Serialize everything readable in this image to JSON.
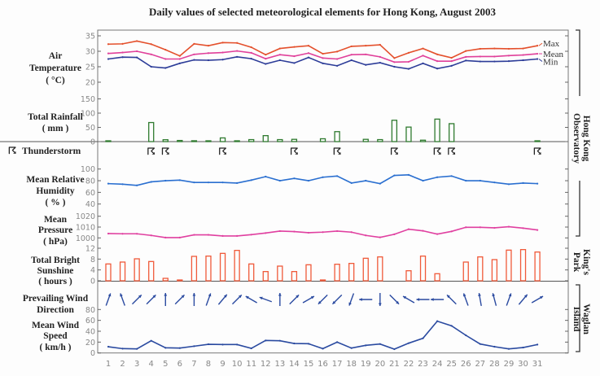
{
  "chart_data": {
    "type": "line",
    "title": "Daily values of selected meteorological elements for Hong Kong, August 2003",
    "x": [
      1,
      2,
      3,
      4,
      5,
      6,
      7,
      8,
      9,
      10,
      11,
      12,
      13,
      14,
      15,
      16,
      17,
      18,
      19,
      20,
      21,
      22,
      23,
      24,
      25,
      26,
      27,
      28,
      29,
      30,
      31
    ],
    "stations": [
      "Hong Kong Observatory",
      "King's Park",
      "Waglan Island"
    ],
    "panels": [
      {
        "id": "temperature",
        "label": [
          "Air",
          "Temperature",
          "( °C)"
        ],
        "type": "line",
        "ylim": [
          20,
          35
        ],
        "ticks": [
          35,
          30,
          25,
          20
        ],
        "series": [
          {
            "name": "Max",
            "color": "#e4502c",
            "values": [
              32.3,
              32.4,
              33.3,
              32.3,
              30.5,
              28.5,
              32.4,
              31.8,
              32.8,
              32.7,
              31.3,
              28.9,
              30.9,
              31.4,
              31.8,
              29.2,
              29.9,
              31.6,
              31.8,
              32.1,
              27.8,
              29.5,
              30.9,
              29.0,
              27.9,
              30.1,
              30.8,
              30.9,
              30.8,
              30.9,
              31.8
            ]
          },
          {
            "name": "Mean",
            "color": "#e0409a",
            "values": [
              29.3,
              29.6,
              30.0,
              29.0,
              27.5,
              27.5,
              29.0,
              29.4,
              29.6,
              30.1,
              29.5,
              27.6,
              28.9,
              28.4,
              29.4,
              27.8,
              27.5,
              28.9,
              29.0,
              28.2,
              26.5,
              26.6,
              28.6,
              26.8,
              26.8,
              28.2,
              28.3,
              28.3,
              28.6,
              28.8,
              29.2
            ]
          },
          {
            "name": "Min",
            "color": "#2c3c98",
            "values": [
              27.5,
              28.1,
              28.0,
              25.0,
              24.6,
              26.1,
              27.2,
              27.1,
              27.3,
              28.2,
              27.6,
              25.9,
              27.1,
              26.2,
              28.0,
              26.1,
              25.3,
              27.1,
              25.6,
              26.3,
              25.0,
              24.3,
              26.1,
              24.4,
              25.3,
              27.0,
              26.7,
              26.7,
              26.8,
              27.1,
              27.5
            ]
          }
        ]
      },
      {
        "id": "rainfall",
        "label": [
          "Total Rainfall",
          "( mm )"
        ],
        "type": "bar",
        "ylim": [
          0,
          150
        ],
        "ticks": [
          150,
          100,
          50,
          0
        ],
        "color": "#2f7a2f",
        "values": [
          0.3,
          0,
          0,
          67,
          6.6,
          4,
          3,
          2,
          13,
          2,
          7,
          21,
          7,
          8,
          0,
          10,
          35,
          0,
          8,
          7,
          75,
          51,
          5,
          79,
          63,
          0,
          0,
          0,
          0,
          0,
          0.5
        ]
      },
      {
        "id": "thunderstorm",
        "label": [
          "Thunderstorm"
        ],
        "symbol": "☈",
        "days": [
          4,
          5,
          9,
          14,
          17,
          21,
          24,
          25,
          31
        ]
      },
      {
        "id": "humidity",
        "label": [
          "Mean Relative",
          "Humidity",
          "( % )"
        ],
        "type": "line",
        "ylim": [
          40,
          100
        ],
        "ticks": [
          100,
          80,
          60,
          40
        ],
        "color": "#2a6fd0",
        "values": [
          75,
          74,
          72,
          78,
          80,
          81,
          77,
          77,
          77,
          76,
          81,
          87,
          80,
          84,
          80,
          86,
          88,
          76,
          80,
          75,
          89,
          90,
          80,
          86,
          88,
          80,
          80,
          77,
          74,
          76,
          75
        ]
      },
      {
        "id": "pressure",
        "label": [
          "Mean",
          "Pressure",
          "( hPa)"
        ],
        "type": "line",
        "ylim": [
          1000,
          1020
        ],
        "ticks": [
          1020,
          1010,
          1000
        ],
        "color": "#e040a0",
        "values": [
          1004.0,
          1003.8,
          1003.8,
          1002.3,
          1000.3,
          1000.3,
          1002.8,
          1002.8,
          1001.8,
          1001.8,
          1003.0,
          1004.5,
          1006.3,
          1005.8,
          1004.8,
          1005.3,
          1006.3,
          1005.3,
          1002.3,
          1000.5,
          1003.3,
          1008.0,
          1006.5,
          1003.5,
          1006.0,
          1009.8,
          1009.8,
          1009.3,
          1010.3,
          1009.0,
          1007.3
        ]
      },
      {
        "id": "sunshine",
        "label": [
          "Total Bright",
          "Sunshine",
          "( hours )"
        ],
        "type": "bar",
        "ylim": [
          0,
          12
        ],
        "ticks": [
          12,
          8,
          4,
          0
        ],
        "color": "#f05a3a",
        "values": [
          6.2,
          6.9,
          8.1,
          7.1,
          0.9,
          0.3,
          9.0,
          9.1,
          10.1,
          11.2,
          6.2,
          3.4,
          5.4,
          3.4,
          5.9,
          0.2,
          6.1,
          6.4,
          8.3,
          8.8,
          0,
          3.7,
          9.1,
          2.6,
          0,
          6.9,
          8.8,
          7.8,
          11.3,
          11.5,
          10.6
        ]
      },
      {
        "id": "wind_direction",
        "label": [
          "Prevailing Wind",
          "Direction"
        ],
        "type": "arrows",
        "color": "#2a4aa0",
        "from_degrees": [
          200,
          160,
          225,
          225,
          180,
          225,
          180,
          200,
          220,
          225,
          120,
          110,
          180,
          225,
          240,
          45,
          45,
          20,
          90,
          0,
          315,
          120,
          90,
          90,
          135,
          160,
          170,
          165,
          200,
          220,
          240
        ]
      },
      {
        "id": "wind_speed",
        "label": [
          "Mean Wind",
          "Speed",
          "( km/h )"
        ],
        "type": "line",
        "ylim": [
          0,
          80
        ],
        "ticks": [
          80,
          60,
          40,
          20,
          0
        ],
        "color": "#2a4aa0",
        "values": [
          11.5,
          8,
          7.5,
          22.5,
          9.5,
          9,
          12.5,
          16,
          15.5,
          15.5,
          8.5,
          23,
          22.5,
          17.5,
          17,
          8,
          20,
          9,
          14,
          16.5,
          7,
          18,
          27,
          58.5,
          50,
          32.5,
          16.5,
          11.5,
          7.5,
          10,
          15.5
        ]
      }
    ]
  }
}
